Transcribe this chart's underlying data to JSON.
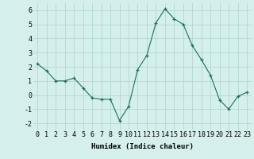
{
  "x": [
    0,
    1,
    2,
    3,
    4,
    5,
    6,
    7,
    8,
    9,
    10,
    11,
    12,
    13,
    14,
    15,
    16,
    17,
    18,
    19,
    20,
    21,
    22,
    23
  ],
  "y": [
    2.2,
    1.7,
    1.0,
    1.0,
    1.2,
    0.5,
    -0.2,
    -0.3,
    -0.3,
    -1.8,
    -0.8,
    1.8,
    2.8,
    5.1,
    6.1,
    5.4,
    5.0,
    3.5,
    2.5,
    1.4,
    -0.35,
    -1.0,
    -0.1,
    0.2
  ],
  "line_color": "#1a7060",
  "marker": "+",
  "bg_color": "#d4efec",
  "grid_color": "#b2d8d4",
  "xlabel": "Humidex (Indice chaleur)",
  "xlim": [
    -0.5,
    23.5
  ],
  "ylim": [
    -2.5,
    6.5
  ],
  "yticks": [
    -2,
    -1,
    0,
    1,
    2,
    3,
    4,
    5,
    6
  ],
  "xticks": [
    0,
    1,
    2,
    3,
    4,
    5,
    6,
    7,
    8,
    9,
    10,
    11,
    12,
    13,
    14,
    15,
    16,
    17,
    18,
    19,
    20,
    21,
    22,
    23
  ],
  "label_fontsize": 6.5,
  "tick_fontsize": 6
}
